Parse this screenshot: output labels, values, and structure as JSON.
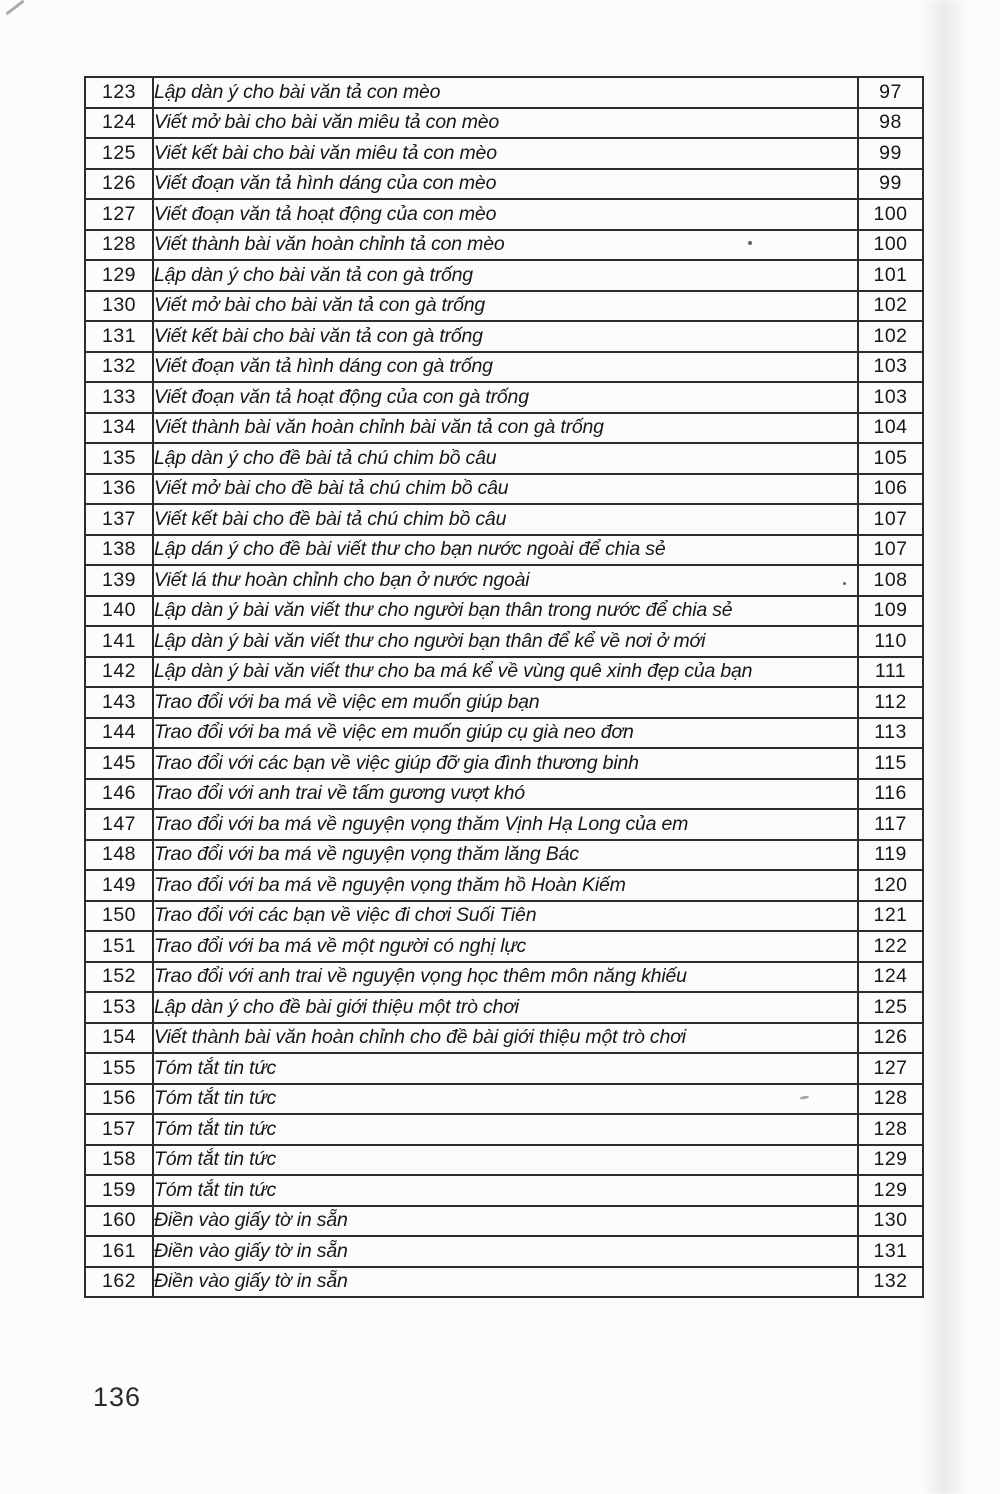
{
  "page": {
    "footer_page_number": "136"
  },
  "table": {
    "rows": [
      {
        "num": "123",
        "title": "Lập dàn ý cho bài văn tả con mèo",
        "page": "97"
      },
      {
        "num": "124",
        "title": "Viết mở bài cho bài văn miêu tả con mèo",
        "page": "98"
      },
      {
        "num": "125",
        "title": "Viết kết bài cho bài văn miêu tả con mèo",
        "page": "99"
      },
      {
        "num": "126",
        "title": "Viết đoạn văn tả hình dáng của con mèo",
        "page": "99"
      },
      {
        "num": "127",
        "title": "Viết đoạn văn tả hoạt động của con mèo",
        "page": "100"
      },
      {
        "num": "128",
        "title": "Viết thành bài văn hoàn chỉnh tả con mèo",
        "page": "100"
      },
      {
        "num": "129",
        "title": "Lập dàn ý cho bài văn tả con gà trống",
        "page": "101"
      },
      {
        "num": "130",
        "title": "Viết mở bài cho bài văn tả con gà trống",
        "page": "102"
      },
      {
        "num": "131",
        "title": "Viết kết bài cho bài văn tả con gà trống",
        "page": "102"
      },
      {
        "num": "132",
        "title": "Viết đoạn văn tả hình dáng con gà trống",
        "page": "103"
      },
      {
        "num": "133",
        "title": "Viết đoạn văn tả hoạt động của con gà trống",
        "page": "103"
      },
      {
        "num": "134",
        "title": "Viết thành bài văn hoàn chỉnh bài văn tả con gà trống",
        "page": "104"
      },
      {
        "num": "135",
        "title": "Lập dàn ý cho đề bài tả chú chim bồ câu",
        "page": "105"
      },
      {
        "num": "136",
        "title": "Viết mở bài cho đề bài tả chú chim bồ câu",
        "page": "106"
      },
      {
        "num": "137",
        "title": "Viết kết bài cho đề bài tả chú chim bồ câu",
        "page": "107"
      },
      {
        "num": "138",
        "title": "Lập dán ý cho đề bài viết thư cho bạn nước ngoài để chia sẻ",
        "page": "107"
      },
      {
        "num": "139",
        "title": "Viết lá thư hoàn chỉnh cho bạn ở nước ngoài",
        "page": "108"
      },
      {
        "num": "140",
        "title": "Lập dàn ý bài văn viết thư cho người bạn thân trong nước để chia sẻ",
        "page": "109"
      },
      {
        "num": "141",
        "title": "Lập dàn ý bài văn viết thư cho người bạn thân để kể về nơi ở mới",
        "page": "110"
      },
      {
        "num": "142",
        "title": "Lập dàn ý bài văn viết thư cho ba má kể về vùng quê xinh đẹp của bạn",
        "page": "111"
      },
      {
        "num": "143",
        "title": "Trao đổi với ba má về việc em muốn giúp bạn",
        "page": "112"
      },
      {
        "num": "144",
        "title": "Trao đổi với ba má về việc em muốn giúp cụ già neo đơn",
        "page": "113"
      },
      {
        "num": "145",
        "title": "Trao đổi với các bạn về việc giúp đỡ gia đình thương binh",
        "page": "115"
      },
      {
        "num": "146",
        "title": "Trao đổi với anh trai về tấm gương vượt khó",
        "page": "116"
      },
      {
        "num": "147",
        "title": "Trao đổi với ba má về nguyện vọng thăm Vịnh Hạ Long của em",
        "page": "117"
      },
      {
        "num": "148",
        "title": "Trao đổi với ba má về nguyện vọng thăm lăng Bác",
        "page": "119"
      },
      {
        "num": "149",
        "title": "Trao đổi với ba má về nguyện vọng thăm hồ Hoàn Kiếm",
        "page": "120"
      },
      {
        "num": "150",
        "title": "Trao đổi với các bạn về việc đi chơi Suối Tiên",
        "page": "121"
      },
      {
        "num": "151",
        "title": "Trao đổi với ba má về một người có nghị lực",
        "page": "122"
      },
      {
        "num": "152",
        "title": "Trao đổi với anh trai về nguyện vọng học thêm môn năng khiếu",
        "page": "124"
      },
      {
        "num": "153",
        "title": "Lập dàn ý cho đề bài giới thiệu một trò chơi",
        "page": "125"
      },
      {
        "num": "154",
        "title": "Viết thành bài văn hoàn chỉnh cho đề bài giới thiệu một trò chơi",
        "page": "126"
      },
      {
        "num": "155",
        "title": "Tóm tắt tin tức",
        "page": "127"
      },
      {
        "num": "156",
        "title": "Tóm tắt tin tức",
        "page": "128"
      },
      {
        "num": "157",
        "title": "Tóm tắt tin tức",
        "page": "128"
      },
      {
        "num": "158",
        "title": "Tóm tắt tin tức",
        "page": "129"
      },
      {
        "num": "159",
        "title": "Tóm tắt tin tức",
        "page": "129"
      },
      {
        "num": "160",
        "title": "Điền vào giấy tờ in sẵn",
        "page": "130"
      },
      {
        "num": "161",
        "title": "Điền vào giấy tờ in sẵn",
        "page": "131"
      },
      {
        "num": "162",
        "title": "Điền vào giấy tờ in sẵn",
        "page": "132"
      }
    ]
  }
}
